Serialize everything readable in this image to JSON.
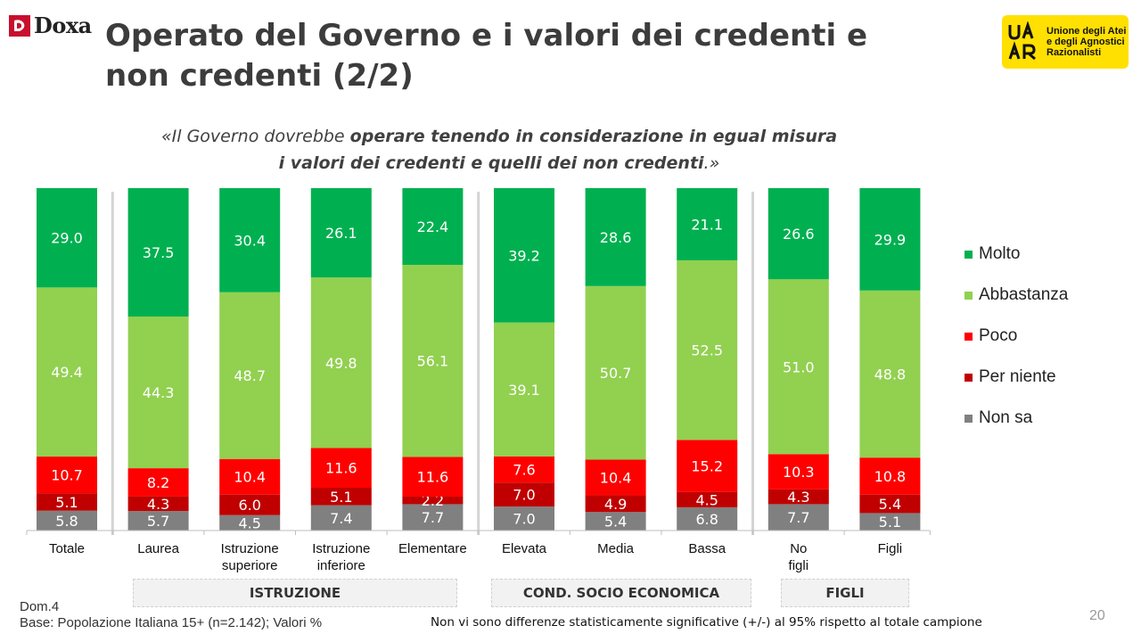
{
  "header": {
    "doxa_logo_text": "Doxa",
    "title_line1": "Operato del Governo e i valori dei credenti e",
    "title_line2": "non credenti (2/2)",
    "uaar_logo_lines": [
      "Unione degli Atei",
      "e degli Agnostici",
      "Razionalisti"
    ]
  },
  "quote": {
    "open": "«Il Governo dovrebbe ",
    "bold1": "operare tenendo in considerazione in egual misura",
    "bold2": "i valori dei credenti e quelli dei non credenti",
    "close": ".»"
  },
  "chart_data": {
    "type": "bar",
    "stacked": true,
    "percent_stacked": true,
    "categories": [
      "Totale",
      "Laurea",
      "Istruzione superiore",
      "Istruzione inferiore",
      "Elementare",
      "Elevata",
      "Media",
      "Bassa",
      "No figli",
      "Figli"
    ],
    "series": [
      {
        "name": "Non sa",
        "color": "#808080",
        "values": [
          5.8,
          5.7,
          4.5,
          7.4,
          7.7,
          7.0,
          5.4,
          6.8,
          7.7,
          5.1
        ]
      },
      {
        "name": "Per niente",
        "color": "#c00000",
        "values": [
          5.1,
          4.3,
          6.0,
          5.1,
          2.2,
          7.0,
          4.9,
          4.5,
          4.3,
          5.4
        ]
      },
      {
        "name": "Poco",
        "color": "#ff0000",
        "values": [
          10.7,
          8.2,
          10.4,
          11.6,
          11.6,
          7.6,
          10.4,
          15.2,
          10.3,
          10.8
        ]
      },
      {
        "name": "Abbastanza",
        "color": "#92d050",
        "values": [
          49.4,
          44.3,
          48.7,
          49.8,
          56.1,
          39.1,
          50.7,
          52.5,
          51.0,
          48.8
        ]
      },
      {
        "name": "Molto",
        "color": "#00b050",
        "values": [
          29.0,
          37.5,
          30.4,
          26.1,
          22.4,
          39.2,
          28.6,
          21.1,
          26.6,
          29.9
        ]
      }
    ],
    "legend_order": [
      "Molto",
      "Abbastanza",
      "Poco",
      "Per niente",
      "Non sa"
    ],
    "legend_position": "right",
    "groups": [
      {
        "label": "ISTRUZIONE",
        "from": 1,
        "to": 4
      },
      {
        "label": "COND. SOCIO ECONOMICA",
        "from": 5,
        "to": 7
      },
      {
        "label": "FIGLI",
        "from": 8,
        "to": 9
      }
    ],
    "separators_after": [
      0,
      4,
      7
    ],
    "grid": false
  },
  "footer": {
    "question_code": "Dom.4",
    "base": "Base: Popolazione Italiana 15+ (n=2.142); Valori %",
    "note": "Non vi sono differenze statisticamente significative (+/-) al 95% rispetto al totale campione",
    "page_number": "20"
  }
}
